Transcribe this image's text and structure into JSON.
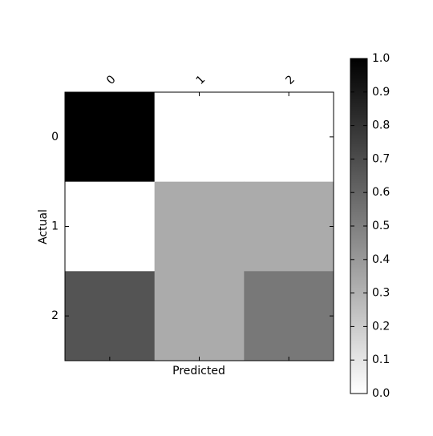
{
  "chart_data": {
    "type": "heatmap",
    "x_label": "Predicted",
    "y_label": "Actual",
    "x_categories": [
      "0",
      "1",
      "2"
    ],
    "y_categories": [
      "0",
      "1",
      "2"
    ],
    "values": [
      [
        1.0,
        0.0,
        0.0
      ],
      [
        0.0,
        0.33,
        0.33
      ],
      [
        0.67,
        0.33,
        0.53
      ]
    ],
    "colormap": [
      "#ffffff",
      "#000000"
    ],
    "clim": [
      0,
      1
    ],
    "cticks": [
      {
        "value": 0,
        "label": "0.0"
      },
      0.1,
      0.2,
      0.3,
      0.4,
      0.5,
      0.6,
      0.7,
      0.8,
      0.9,
      {
        "value": 1,
        "label": "1.0"
      }
    ]
  }
}
